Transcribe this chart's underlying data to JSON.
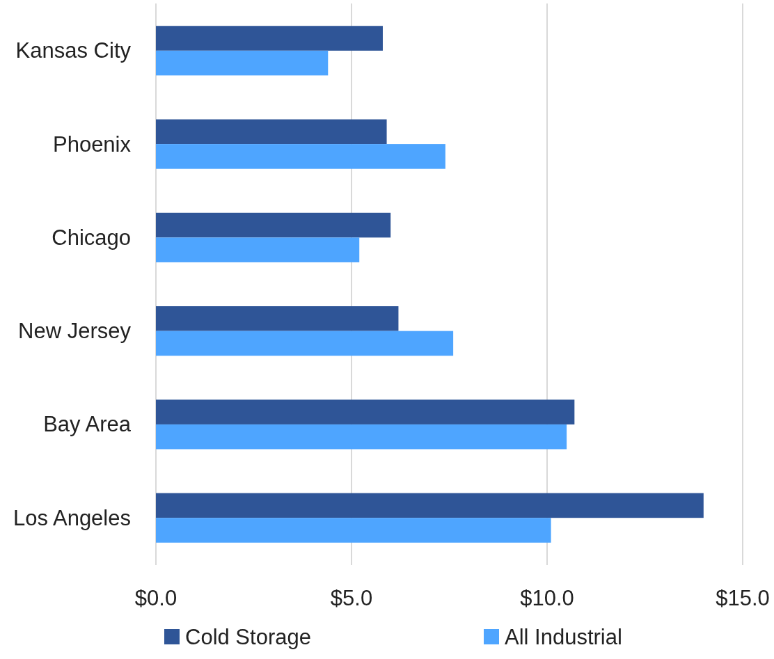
{
  "chart_data": {
    "type": "bar",
    "orientation": "horizontal",
    "categories": [
      "Kansas City",
      "Phoenix",
      "Chicago",
      "New Jersey",
      "Bay Area",
      "Los Angeles"
    ],
    "series": [
      {
        "name": "Cold Storage",
        "color": "#2f5597",
        "values": [
          5.8,
          5.9,
          6.0,
          6.2,
          10.7,
          14.0
        ]
      },
      {
        "name": "All Industrial",
        "color": "#4ea5ff",
        "values": [
          4.4,
          7.4,
          5.2,
          7.6,
          10.5,
          10.1
        ]
      }
    ],
    "xlim": [
      0,
      15
    ],
    "xticks": [
      {
        "value": 0,
        "label": "$0.0"
      },
      {
        "value": 5,
        "label": "$5.0"
      },
      {
        "value": 10,
        "label": "$10.0"
      },
      {
        "value": 15,
        "label": "$15.0"
      }
    ],
    "grid": "x",
    "legend": "bottom"
  }
}
